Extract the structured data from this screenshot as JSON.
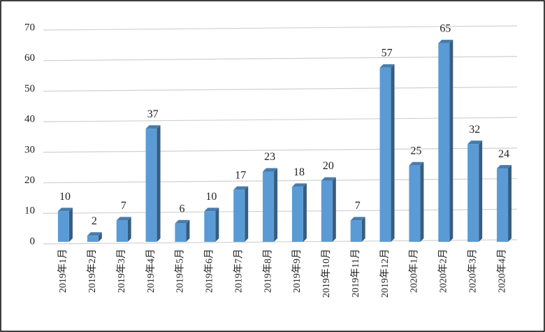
{
  "chart_data": {
    "type": "bar",
    "categories": [
      "2019年1月",
      "2019年2月",
      "2019年3月",
      "2019年4月",
      "2019年5月",
      "2019年6月",
      "2019年7月",
      "2019年8月",
      "2019年9月",
      "2019年10月",
      "2019年11月",
      "2019年12月",
      "2020年1月",
      "2020年2月",
      "2020年3月",
      "2020年4月"
    ],
    "values": [
      10,
      2,
      7,
      37,
      6,
      10,
      17,
      23,
      18,
      20,
      7,
      57,
      25,
      65,
      32,
      24
    ],
    "color": "#5b9bd5",
    "ylim": [
      0,
      70
    ],
    "yticks": [
      0,
      10,
      20,
      30,
      40,
      50,
      60,
      70
    ],
    "grid": true
  }
}
